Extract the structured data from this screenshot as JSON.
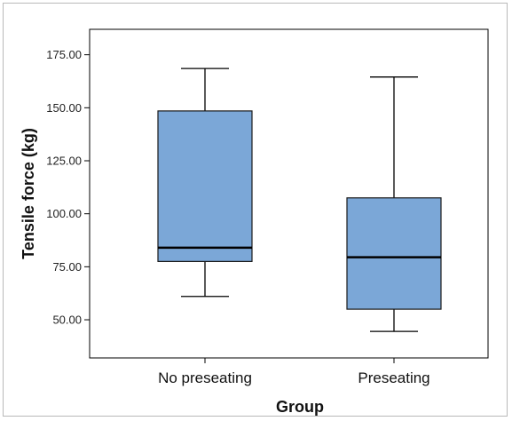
{
  "chart_data": {
    "type": "boxplot",
    "xlabel": "Group",
    "ylabel": "Tensile force (kg)",
    "ylim": [
      32,
      187
    ],
    "yticks": [
      {
        "value": 50,
        "label": "50.00"
      },
      {
        "value": 75,
        "label": "75.00"
      },
      {
        "value": 100,
        "label": "100.00"
      },
      {
        "value": 125,
        "label": "125.00"
      },
      {
        "value": 150,
        "label": "150.00"
      },
      {
        "value": 175,
        "label": "175.00"
      }
    ],
    "grid": false,
    "box_color": "#7BA7D7",
    "categories": [
      "No preseating",
      "Preseating"
    ],
    "boxes": [
      {
        "category": "No preseating",
        "min": 61,
        "q1": 77.5,
        "median": 84,
        "q3": 148.5,
        "max": 168.5
      },
      {
        "category": "Preseating",
        "min": 44.5,
        "q1": 55,
        "median": 79.5,
        "q3": 107.5,
        "max": 164.5
      }
    ]
  }
}
